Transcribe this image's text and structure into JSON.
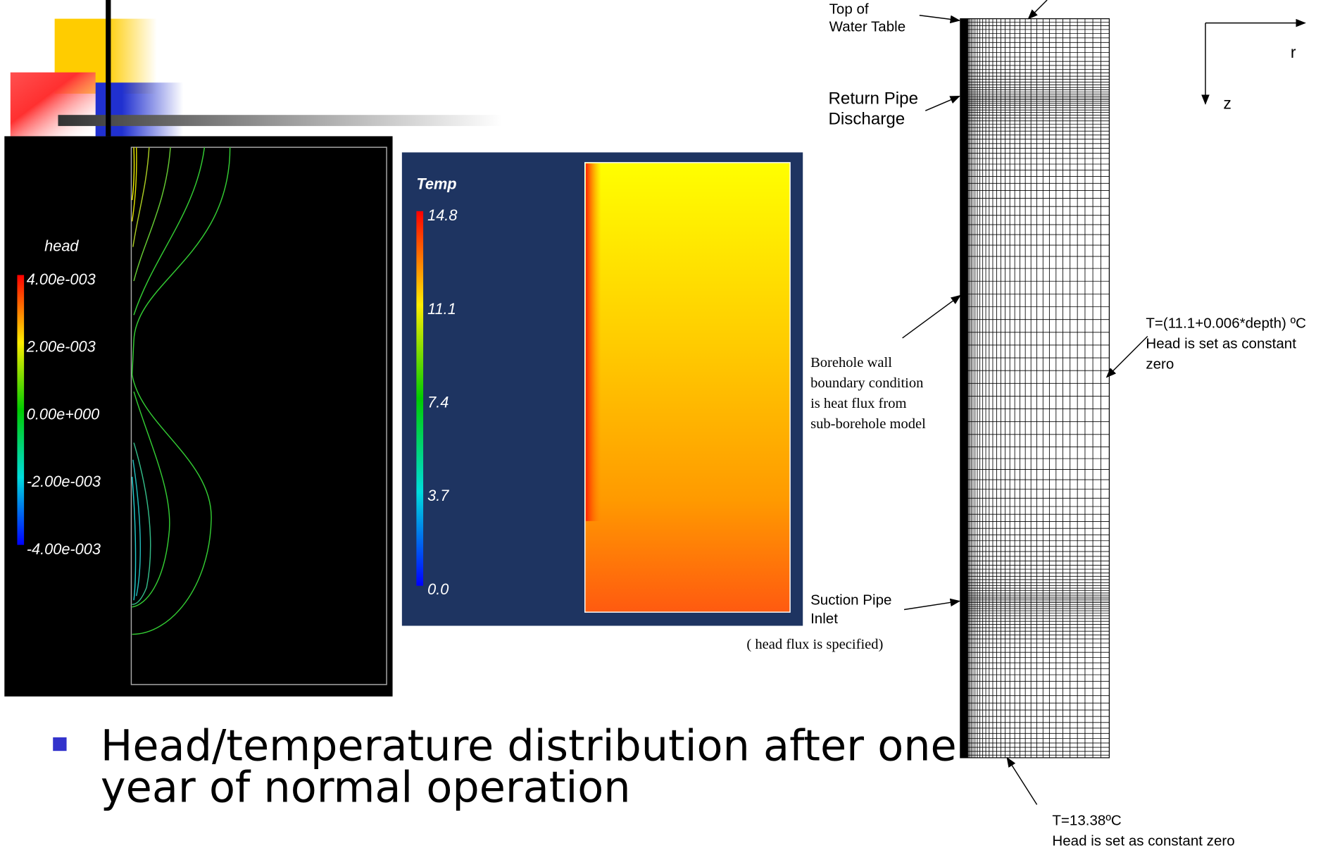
{
  "head_panel": {
    "title": "head",
    "legend_labels": [
      "4.00e-003",
      "2.00e-003",
      "0.00e+000",
      "-2.00e-003",
      "-4.00e-003"
    ]
  },
  "temp_panel": {
    "title": "Temp",
    "legend_labels": [
      "14.8",
      "11.1",
      "7.4",
      "3.7",
      "0.0"
    ]
  },
  "mesh": {
    "top_of_water_table": [
      "Top of",
      "Water Table"
    ],
    "return_pipe": [
      "Return Pipe",
      "Discharge"
    ],
    "borehole_wall": [
      "Borehole wall",
      "boundary condition",
      "is heat flux from",
      "sub-borehole model"
    ],
    "suction_pipe": [
      "Suction Pipe",
      "Inlet"
    ],
    "head_flux_note": "( head flux is specified)",
    "right_boundary": [
      "T=(11.1+0.006*depth) ºC",
      "Head is set as constant",
      "zero"
    ],
    "bottom_boundary": [
      "T=13.38ºC",
      "Head is set as constant zero"
    ],
    "axis_r": "r",
    "axis_z": "z"
  },
  "bullet": {
    "lines": [
      "Head/temperature distribution after one",
      "year of normal operation"
    ]
  }
}
